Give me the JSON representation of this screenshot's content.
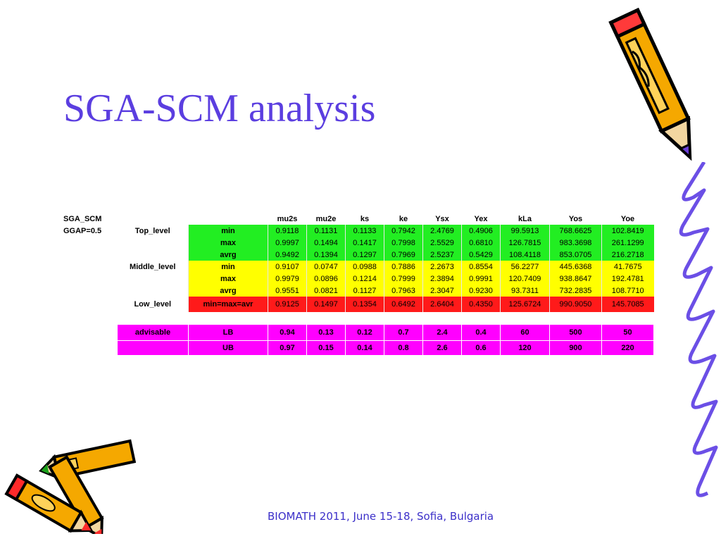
{
  "slide": {
    "title": "SGA-SCM analysis",
    "footer": "BIOMATH 2011, June 15-18, Sofia, Bulgaria"
  },
  "table": {
    "corner": "SGA_SCM",
    "headers": [
      "mu2s",
      "mu2e",
      "ks",
      "ke",
      "Ysx",
      "Yex",
      "kLa",
      "Yos",
      "Yoe"
    ],
    "ggap": "GGAP=0.5",
    "rows": [
      {
        "group": "Top_level",
        "stat": "min",
        "values": [
          "0.9118",
          "0.1131",
          "0.1133",
          "0.7942",
          "2.4769",
          "0.4906",
          "99.5913",
          "768.6625",
          "102.8419"
        ]
      },
      {
        "group": "",
        "stat": "max",
        "values": [
          "0.9997",
          "0.1494",
          "0.1417",
          "0.7998",
          "2.5529",
          "0.6810",
          "126.7815",
          "983.3698",
          "261.1299"
        ]
      },
      {
        "group": "",
        "stat": "avrg",
        "values": [
          "0.9492",
          "0.1394",
          "0.1297",
          "0.7969",
          "2.5237",
          "0.5429",
          "108.4118",
          "853.0705",
          "216.2718"
        ]
      },
      {
        "group": "Middle_level",
        "stat": "min",
        "values": [
          "0.9107",
          "0.0747",
          "0.0988",
          "0.7886",
          "2.2673",
          "0.8554",
          "56.2277",
          "445.6368",
          "41.7675"
        ]
      },
      {
        "group": "",
        "stat": "max",
        "values": [
          "0.9979",
          "0.0896",
          "0.1214",
          "0.7999",
          "2.3894",
          "0.9991",
          "120.7409",
          "938.8647",
          "192.4781"
        ]
      },
      {
        "group": "",
        "stat": "avrg",
        "values": [
          "0.9551",
          "0.0821",
          "0.1127",
          "0.7963",
          "2.3047",
          "0.9230",
          "93.7311",
          "732.2835",
          "108.7710"
        ]
      },
      {
        "group": "Low_level",
        "stat": "min=max=avr",
        "values": [
          "0.9125",
          "0.1497",
          "0.1354",
          "0.6492",
          "2.6404",
          "0.4350",
          "125.6724",
          "990.9050",
          "145.7085"
        ]
      }
    ],
    "advisable": {
      "label": "advisable",
      "lb": {
        "stat": "LB",
        "values": [
          "0.94",
          "0.13",
          "0.12",
          "0.7",
          "2.4",
          "0.4",
          "60",
          "500",
          "50"
        ]
      },
      "ub": {
        "stat": "UB",
        "values": [
          "0.97",
          "0.15",
          "0.14",
          "0.8",
          "2.6",
          "0.6",
          "120",
          "900",
          "220"
        ]
      }
    }
  },
  "colors": {
    "title": "#5b3ee0",
    "top_level": "#22ee22",
    "middle_level": "#ffff00",
    "low_level": "#ff1a1a",
    "advisable": "#ff00ff"
  },
  "decorations": [
    "pencil-icon",
    "crayons-icon",
    "curly-line-icon"
  ]
}
